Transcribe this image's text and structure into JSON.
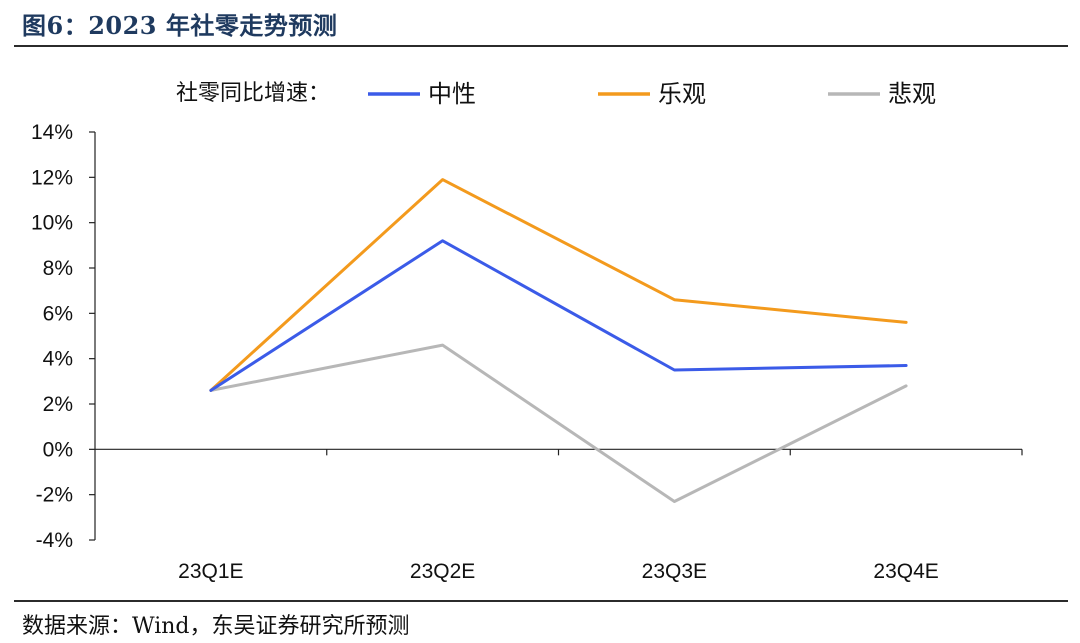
{
  "title": "图6：2023 年社零走势预测",
  "source": "数据来源：Wind，东吴证券研究所预测",
  "chart_data": {
    "type": "line",
    "legend_title": "社零同比增速：",
    "categories": [
      "23Q1E",
      "23Q2E",
      "23Q3E",
      "23Q4E"
    ],
    "series": [
      {
        "name": "中性",
        "color": "#3b5be8",
        "values": [
          2.6,
          9.2,
          3.5,
          3.7
        ]
      },
      {
        "name": "乐观",
        "color": "#f39a1d",
        "values": [
          2.6,
          11.9,
          6.6,
          5.6
        ]
      },
      {
        "name": "悲观",
        "color": "#b7b7b7",
        "values": [
          2.6,
          4.6,
          -2.3,
          2.8
        ]
      }
    ],
    "ylim": [
      -4,
      14
    ],
    "yticks": [
      "-4%",
      "-2%",
      "0%",
      "2%",
      "4%",
      "6%",
      "8%",
      "10%",
      "12%",
      "14%"
    ],
    "legend_position": "top",
    "grid": false
  }
}
